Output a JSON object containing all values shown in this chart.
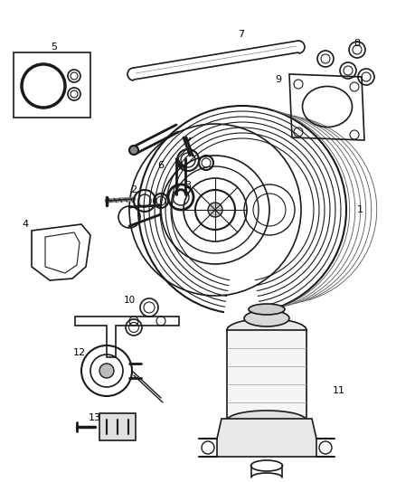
{
  "background_color": "#ffffff",
  "line_color": "#1a1a1a",
  "fig_width": 4.38,
  "fig_height": 5.33,
  "dpi": 100
}
